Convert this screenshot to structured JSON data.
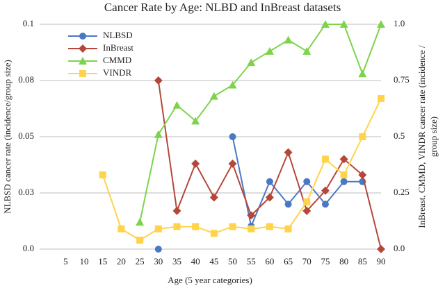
{
  "chart_data": {
    "type": "line",
    "title": "Cancer Rate by Age: NLBD and InBreast datasets",
    "xlabel": "Age (5 year categories)",
    "ylabel": "NLBSD cancer rate (incidence/group size)",
    "y2label": [
      "InBreast, CMMD, VINDR cancer rate (incidence /",
      "group size)"
    ],
    "x": [
      5,
      10,
      15,
      20,
      25,
      30,
      35,
      40,
      45,
      50,
      55,
      60,
      65,
      70,
      75,
      80,
      85,
      90
    ],
    "xlim": [
      -2,
      90
    ],
    "xticks": [
      5,
      10,
      15,
      20,
      25,
      30,
      35,
      40,
      45,
      50,
      55,
      60,
      65,
      70,
      75,
      80,
      85,
      90
    ],
    "ylim": [
      0,
      0.1
    ],
    "yticks": [
      {
        "value": 0,
        "label": "0.0"
      },
      {
        "value": 0.025,
        "label": "0.03"
      },
      0.05,
      {
        "value": 0.075,
        "label": "0.08"
      },
      0.1
    ],
    "y2lim": [
      0,
      1
    ],
    "y2ticks": [
      {
        "value": 0,
        "label": "0.0"
      },
      0.25,
      0.5,
      0.75,
      {
        "value": 1,
        "label": "1.0"
      }
    ],
    "grid": true,
    "legend": "upper left",
    "series": [
      {
        "name": "NLBSD",
        "color": "#4a78c4",
        "marker": "circle",
        "axis": "y",
        "values": [
          null,
          null,
          null,
          null,
          null,
          0,
          null,
          null,
          null,
          0.05,
          0.0102,
          0.03,
          0.02,
          0.03,
          0.02,
          0.03,
          0.03,
          null
        ]
      },
      {
        "name": "InBreast",
        "color": "#b5473a",
        "marker": "diamond",
        "axis": "y2",
        "values": [
          null,
          null,
          null,
          null,
          null,
          0.75,
          0.17,
          0.38,
          0.23,
          0.38,
          0.15,
          0.23,
          0.43,
          0.17,
          0.26,
          0.4,
          0.33,
          0
        ]
      },
      {
        "name": "CMMD",
        "color": "#7dd44a",
        "marker": "triangle",
        "axis": "y2",
        "values": [
          null,
          null,
          null,
          null,
          0.12,
          0.51,
          0.64,
          0.57,
          0.68,
          0.73,
          0.83,
          0.88,
          0.93,
          0.88,
          1,
          1,
          0.78,
          1
        ]
      },
      {
        "name": "VINDR",
        "color": "#ffd34a",
        "marker": "square",
        "axis": "y2",
        "values": [
          null,
          null,
          0.33,
          0.09,
          0.04,
          0.09,
          0.1,
          0.1,
          0.07,
          0.1,
          0.09,
          0.1,
          0.09,
          0.21,
          0.4,
          0.33,
          0.5,
          0.67
        ]
      }
    ]
  }
}
